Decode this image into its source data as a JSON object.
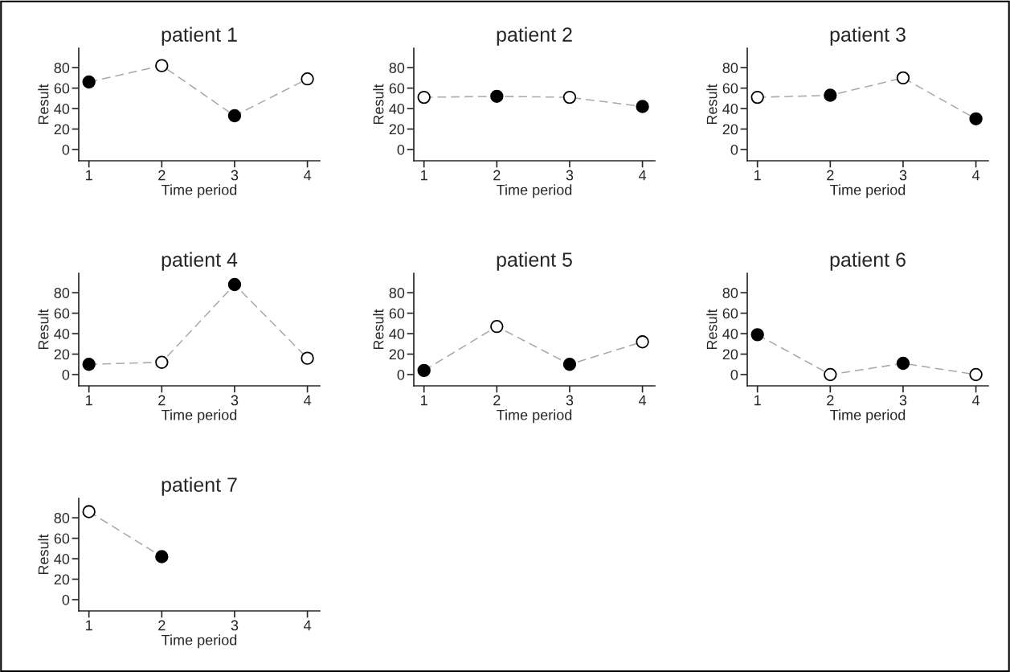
{
  "chart_data": [
    {
      "type": "line",
      "title": "patient 1",
      "xlabel": "Time period",
      "ylabel": "Result",
      "x": [
        1,
        2,
        3,
        4
      ],
      "xlim": [
        0.86,
        4.17
      ],
      "xticks": [
        1,
        2,
        3,
        4
      ],
      "ylim": [
        -11,
        99
      ],
      "yticks": [
        0,
        20,
        40,
        60,
        80
      ],
      "marker": "circle",
      "line_style": "dashed",
      "series": [
        {
          "color": "#a8a8a8",
          "colors": [
            "#000000",
            "#ffffff",
            "#000000",
            "#ffffff"
          ],
          "values": [
            66,
            82,
            33,
            69
          ]
        }
      ]
    },
    {
      "type": "line",
      "title": "patient 2",
      "xlabel": "Time period",
      "ylabel": "Result",
      "x": [
        1,
        2,
        3,
        4
      ],
      "xlim": [
        0.86,
        4.17
      ],
      "xticks": [
        1,
        2,
        3,
        4
      ],
      "ylim": [
        -11,
        99
      ],
      "yticks": [
        0,
        20,
        40,
        60,
        80
      ],
      "marker": "circle",
      "line_style": "dashed",
      "series": [
        {
          "color": "#a8a8a8",
          "colors": [
            "#ffffff",
            "#000000",
            "#ffffff",
            "#000000"
          ],
          "values": [
            51,
            52,
            51,
            42
          ]
        }
      ]
    },
    {
      "type": "line",
      "title": "patient 3",
      "xlabel": "Time period",
      "ylabel": "Result",
      "x": [
        1,
        2,
        3,
        4
      ],
      "xlim": [
        0.86,
        4.17
      ],
      "xticks": [
        1,
        2,
        3,
        4
      ],
      "ylim": [
        -11,
        99
      ],
      "yticks": [
        0,
        20,
        40,
        60,
        80
      ],
      "marker": "circle",
      "line_style": "dashed",
      "series": [
        {
          "color": "#a8a8a8",
          "colors": [
            "#ffffff",
            "#000000",
            "#ffffff",
            "#000000"
          ],
          "values": [
            51,
            53,
            70,
            30
          ]
        }
      ]
    },
    {
      "type": "line",
      "title": "patient 4",
      "xlabel": "Time period",
      "ylabel": "Result",
      "x": [
        1,
        2,
        3,
        4
      ],
      "xlim": [
        0.86,
        4.17
      ],
      "xticks": [
        1,
        2,
        3,
        4
      ],
      "ylim": [
        -11,
        99
      ],
      "yticks": [
        0,
        20,
        40,
        60,
        80
      ],
      "marker": "circle",
      "line_style": "dashed",
      "series": [
        {
          "color": "#a8a8a8",
          "colors": [
            "#000000",
            "#ffffff",
            "#000000",
            "#ffffff"
          ],
          "values": [
            10,
            12,
            88,
            16
          ]
        }
      ]
    },
    {
      "type": "line",
      "title": "patient 5",
      "xlabel": "Time period",
      "ylabel": "Result",
      "x": [
        1,
        2,
        3,
        4
      ],
      "xlim": [
        0.86,
        4.17
      ],
      "xticks": [
        1,
        2,
        3,
        4
      ],
      "ylim": [
        -11,
        99
      ],
      "yticks": [
        0,
        20,
        40,
        60,
        80
      ],
      "marker": "circle",
      "line_style": "dashed",
      "series": [
        {
          "color": "#a8a8a8",
          "colors": [
            "#000000",
            "#ffffff",
            "#000000",
            "#ffffff"
          ],
          "values": [
            4,
            47,
            10,
            32
          ]
        }
      ]
    },
    {
      "type": "line",
      "title": "patient 6",
      "xlabel": "Time period",
      "ylabel": "Result",
      "x": [
        1,
        2,
        3,
        4
      ],
      "xlim": [
        0.86,
        4.17
      ],
      "xticks": [
        1,
        2,
        3,
        4
      ],
      "ylim": [
        -11,
        99
      ],
      "yticks": [
        0,
        20,
        40,
        60,
        80
      ],
      "marker": "circle",
      "line_style": "dashed",
      "series": [
        {
          "color": "#a8a8a8",
          "colors": [
            "#000000",
            "#ffffff",
            "#000000",
            "#ffffff"
          ],
          "values": [
            39,
            0,
            11,
            0
          ]
        }
      ]
    },
    {
      "type": "line",
      "title": "patient 7",
      "xlabel": "Time period",
      "ylabel": "Result",
      "x": [
        1,
        2
      ],
      "xlim": [
        0.86,
        4.17
      ],
      "xticks": [
        1,
        2,
        3,
        4
      ],
      "ylim": [
        -11,
        99
      ],
      "yticks": [
        0,
        20,
        40,
        60,
        80
      ],
      "marker": "circle",
      "line_style": "dashed",
      "series": [
        {
          "color": "#a8a8a8",
          "colors": [
            "#ffffff",
            "#000000"
          ],
          "values": [
            86,
            42
          ]
        }
      ]
    }
  ]
}
